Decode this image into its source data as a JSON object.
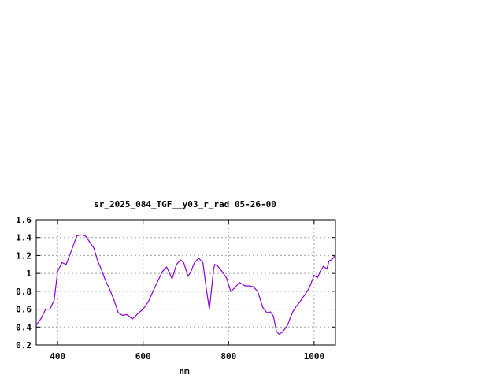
{
  "chart_data": {
    "type": "line",
    "title": "sr_2025_084_TGF__y03_r_rad 05-26-00",
    "xlabel": "nm",
    "ylabel": "",
    "xlim": [
      350,
      1050
    ],
    "ylim": [
      0.2,
      1.6
    ],
    "xticks": [
      400,
      600,
      800,
      1000
    ],
    "yticks": [
      0.2,
      0.4,
      0.6,
      0.8,
      1,
      1.2,
      1.4,
      1.6
    ],
    "ytick_labels": [
      "0.2",
      "0.4",
      "0.6",
      "0.8",
      "1",
      "1.2",
      "1.4",
      "1.6"
    ],
    "grid": true,
    "series_color": "#8a00d4",
    "series": [
      {
        "x": [
          350,
          362,
          372,
          382,
          392,
          400,
          410,
          420,
          432,
          445,
          455,
          465,
          475,
          485,
          493,
          502,
          512,
          522,
          532,
          542,
          552,
          562,
          575,
          590,
          600,
          612,
          625,
          635,
          645,
          655,
          668,
          678,
          688,
          695,
          705,
          712,
          720,
          730,
          740,
          748,
          755,
          760,
          765,
          768,
          775,
          785,
          795,
          805,
          815,
          825,
          838,
          848,
          858,
          868,
          880,
          890,
          898,
          905,
          912,
          918,
          925,
          932,
          938,
          944,
          950,
          958,
          965,
          972,
          980,
          990,
          1000,
          1008,
          1015,
          1022,
          1030,
          1035,
          1040,
          1045,
          1050
        ],
        "y": [
          0.42,
          0.5,
          0.6,
          0.6,
          0.7,
          1.02,
          1.12,
          1.1,
          1.25,
          1.42,
          1.43,
          1.42,
          1.35,
          1.28,
          1.15,
          1.05,
          0.92,
          0.82,
          0.7,
          0.56,
          0.53,
          0.54,
          0.49,
          0.56,
          0.6,
          0.68,
          0.82,
          0.92,
          1.02,
          1.07,
          0.94,
          1.1,
          1.15,
          1.12,
          0.97,
          1.02,
          1.12,
          1.17,
          1.12,
          0.82,
          0.6,
          0.82,
          1.05,
          1.1,
          1.08,
          1.02,
          0.95,
          0.8,
          0.84,
          0.9,
          0.86,
          0.86,
          0.85,
          0.8,
          0.62,
          0.56,
          0.57,
          0.52,
          0.35,
          0.32,
          0.34,
          0.38,
          0.42,
          0.5,
          0.57,
          0.63,
          0.67,
          0.72,
          0.77,
          0.85,
          0.98,
          0.95,
          1.03,
          1.08,
          1.05,
          1.14,
          1.15,
          1.17,
          1.22
        ]
      }
    ]
  }
}
